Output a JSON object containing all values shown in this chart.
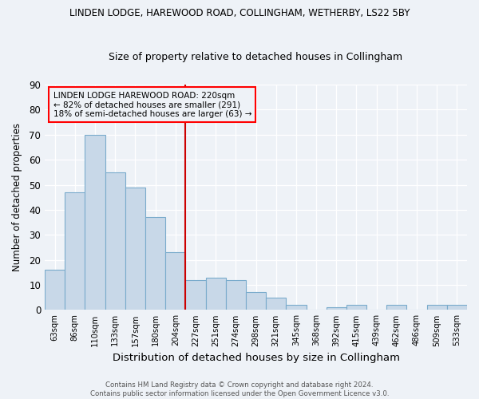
{
  "title1": "LINDEN LODGE, HAREWOOD ROAD, COLLINGHAM, WETHERBY, LS22 5BY",
  "title2": "Size of property relative to detached houses in Collingham",
  "xlabel": "Distribution of detached houses by size in Collingham",
  "ylabel": "Number of detached properties",
  "categories": [
    "63sqm",
    "86sqm",
    "110sqm",
    "133sqm",
    "157sqm",
    "180sqm",
    "204sqm",
    "227sqm",
    "251sqm",
    "274sqm",
    "298sqm",
    "321sqm",
    "345sqm",
    "368sqm",
    "392sqm",
    "415sqm",
    "439sqm",
    "462sqm",
    "486sqm",
    "509sqm",
    "533sqm"
  ],
  "values": [
    16,
    47,
    70,
    55,
    49,
    37,
    23,
    12,
    13,
    12,
    7,
    5,
    2,
    0,
    1,
    2,
    0,
    2,
    0,
    2,
    2
  ],
  "bar_color": "#c8d8e8",
  "bar_edge_color": "#7aabcc",
  "vline_x_index": 7,
  "vline_color": "#cc0000",
  "ylim": [
    0,
    90
  ],
  "yticks": [
    0,
    10,
    20,
    30,
    40,
    50,
    60,
    70,
    80,
    90
  ],
  "annotation_title": "LINDEN LODGE HAREWOOD ROAD: 220sqm",
  "annotation_line1": "← 82% of detached houses are smaller (291)",
  "annotation_line2": "18% of semi-detached houses are larger (63) →",
  "footer1": "Contains HM Land Registry data © Crown copyright and database right 2024.",
  "footer2": "Contains public sector information licensed under the Open Government Licence v3.0.",
  "bg_color": "#eef2f7"
}
